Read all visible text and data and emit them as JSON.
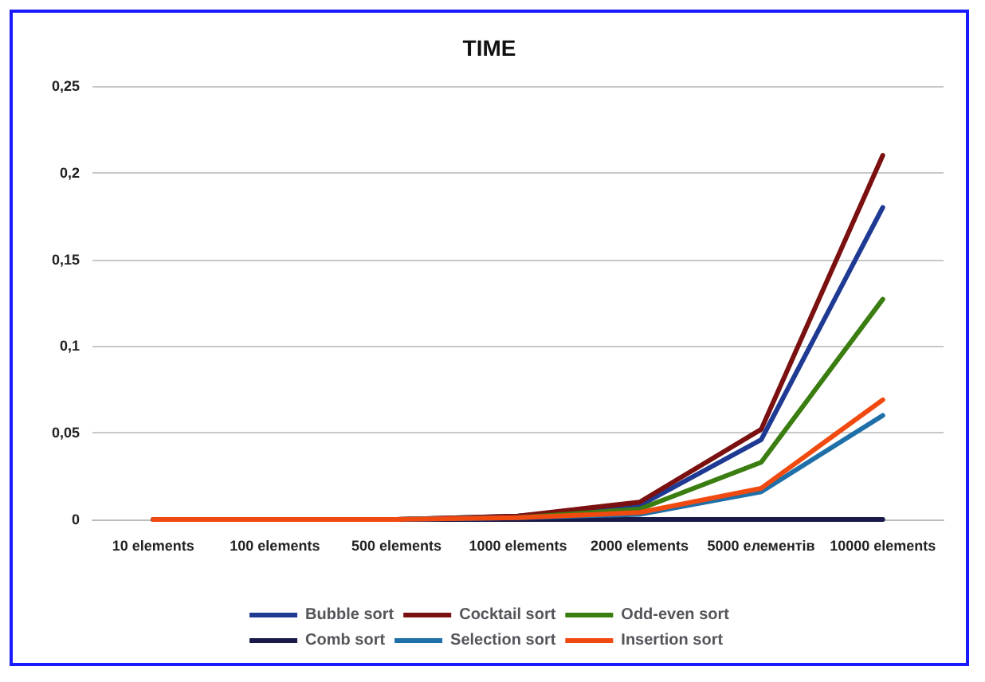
{
  "chart_data": {
    "type": "line",
    "title": "TIME",
    "categories": [
      "10 elements",
      "100 elements",
      "500 elements",
      "1000 elements",
      "2000 elements",
      "5000 елементів",
      "10000 elements"
    ],
    "series": [
      {
        "name": "Bubble sort",
        "color": "#1f3a93",
        "values": [
          null,
          null,
          0,
          0.002,
          0.008,
          0.046,
          0.18
        ]
      },
      {
        "name": "Cocktail sort",
        "color": "#7b1010",
        "values": [
          0,
          0,
          0,
          0.002,
          0.01,
          0.052,
          0.21
        ]
      },
      {
        "name": "Odd-even sort",
        "color": "#3a7d10",
        "values": [
          null,
          null,
          0,
          0.001,
          0.006,
          0.033,
          0.127
        ]
      },
      {
        "name": "Comb sort",
        "color": "#1a1a4a",
        "values": [
          0,
          0,
          0,
          0,
          0,
          0,
          0
        ]
      },
      {
        "name": "Selection sort",
        "color": "#1f6fa8",
        "values": [
          null,
          null,
          0,
          0.001,
          0.003,
          0.016,
          0.06
        ]
      },
      {
        "name": "Insertion sort",
        "color": "#f04a10",
        "values": [
          0,
          0,
          0,
          0.001,
          0.004,
          0.018,
          0.069
        ]
      }
    ],
    "ylim": [
      0,
      0.25
    ],
    "yticks": [
      {
        "value": 0,
        "label": "0"
      },
      {
        "value": 0.05,
        "label": "0,05"
      },
      {
        "value": 0.1,
        "label": "0,1"
      },
      {
        "value": 0.15,
        "label": "0,15"
      },
      {
        "value": 0.2,
        "label": "0,2"
      },
      {
        "value": 0.25,
        "label": "0,25"
      }
    ],
    "grid": "y",
    "legend": "bottom",
    "marker": "none",
    "line_style": "solid"
  }
}
